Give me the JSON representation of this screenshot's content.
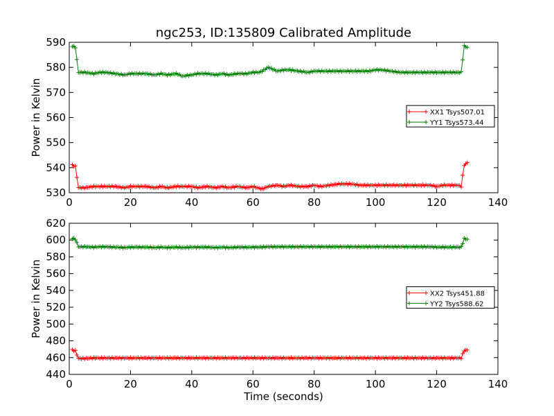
{
  "chart_data": [
    {
      "type": "line",
      "title": "ngc253, ID:135809 Calibrated Amplitude",
      "xlabel": "",
      "ylabel": "Power in Kelvin",
      "xlim": [
        0,
        140
      ],
      "ylim": [
        530,
        590
      ],
      "xticks": [
        "0",
        "20",
        "40",
        "60",
        "80",
        "100",
        "120",
        "140"
      ],
      "yticks": [
        "530",
        "540",
        "550",
        "560",
        "570",
        "580",
        "590"
      ],
      "legend_position": "center-right",
      "grid": false,
      "series": [
        {
          "name": "XX1 Tsys507.01",
          "color": "#ff0000",
          "marker": "plus",
          "x": [
            1,
            2,
            3,
            5,
            8,
            10,
            12,
            15,
            18,
            20,
            22,
            25,
            28,
            30,
            32,
            35,
            37,
            40,
            42,
            45,
            48,
            50,
            52,
            55,
            58,
            60,
            62,
            63,
            65,
            68,
            70,
            72,
            75,
            78,
            80,
            82,
            85,
            88,
            90,
            92,
            95,
            98,
            100,
            102,
            105,
            108,
            110,
            112,
            115,
            118,
            120,
            122,
            125,
            127,
            128,
            129,
            130
          ],
          "y": [
            541,
            540.5,
            532,
            532,
            532.5,
            532.5,
            532.5,
            532.5,
            532,
            532.5,
            532.5,
            532.5,
            532,
            532.5,
            532,
            532.5,
            532.5,
            532.5,
            532,
            532.5,
            532,
            532.5,
            532,
            532.5,
            532,
            532.5,
            531.8,
            531.5,
            532.5,
            533,
            532.5,
            533,
            532.5,
            532.5,
            533,
            532.5,
            533,
            533.5,
            533.5,
            533.5,
            533,
            533,
            533,
            533,
            533,
            533,
            533,
            533,
            533,
            533,
            532.5,
            533,
            533,
            533,
            532.5,
            541,
            542
          ]
        },
        {
          "name": "YY1 Tsys573.44",
          "color": "#008000",
          "marker": "plus",
          "x": [
            1,
            2,
            3,
            5,
            8,
            10,
            12,
            15,
            18,
            20,
            22,
            25,
            28,
            30,
            32,
            35,
            37,
            40,
            42,
            45,
            48,
            50,
            52,
            55,
            58,
            60,
            62,
            63,
            65,
            68,
            70,
            72,
            75,
            78,
            80,
            82,
            85,
            88,
            90,
            92,
            95,
            98,
            100,
            102,
            105,
            108,
            110,
            112,
            115,
            118,
            120,
            122,
            125,
            127,
            128,
            129,
            130
          ],
          "y": [
            588.5,
            588,
            578,
            578,
            577.5,
            578,
            578,
            577.5,
            577,
            577.5,
            577.5,
            577.5,
            577,
            577.5,
            577,
            577.5,
            576.5,
            577,
            577.5,
            577.5,
            577,
            577.5,
            577,
            577.5,
            577.5,
            578,
            578,
            578.5,
            580,
            578.5,
            579,
            579,
            578.5,
            578,
            578.5,
            578.5,
            578.5,
            578.5,
            578.5,
            578.5,
            578.5,
            578.5,
            579,
            579,
            578.5,
            578,
            578,
            578,
            578,
            578,
            578,
            578,
            578,
            578,
            578,
            588.5,
            588
          ]
        }
      ]
    },
    {
      "type": "line",
      "title": "",
      "xlabel": "Time (seconds)",
      "ylabel": "Power in Kelvin",
      "xlim": [
        0,
        140
      ],
      "ylim": [
        440,
        620
      ],
      "xticks": [
        "0",
        "20",
        "40",
        "60",
        "80",
        "100",
        "120",
        "140"
      ],
      "yticks": [
        "440",
        "460",
        "480",
        "500",
        "520",
        "540",
        "560",
        "580",
        "600",
        "620"
      ],
      "legend_position": "center-right",
      "grid": false,
      "series": [
        {
          "name": "XX2 Tsys451.88",
          "color": "#ff0000",
          "marker": "plus",
          "x": [
            1,
            2,
            3,
            5,
            8,
            10,
            12,
            15,
            18,
            20,
            22,
            25,
            28,
            30,
            32,
            35,
            37,
            40,
            42,
            45,
            48,
            50,
            52,
            55,
            58,
            60,
            62,
            65,
            68,
            70,
            72,
            75,
            78,
            80,
            82,
            85,
            88,
            90,
            92,
            95,
            98,
            100,
            102,
            105,
            108,
            110,
            112,
            115,
            118,
            120,
            122,
            125,
            127,
            128,
            129,
            130
          ],
          "y": [
            469,
            468,
            459,
            459,
            459.5,
            459.5,
            459.5,
            459.5,
            459.5,
            459.5,
            459.5,
            459.5,
            459.5,
            459.5,
            459.5,
            459.5,
            459.5,
            459.5,
            459.5,
            459.5,
            459.5,
            459.5,
            459.5,
            459.5,
            459.5,
            459.5,
            459.5,
            459.5,
            459.5,
            459.5,
            459.5,
            459.5,
            459.5,
            459.5,
            459.5,
            459.5,
            459.5,
            459.5,
            459.5,
            459.5,
            459.5,
            459.5,
            459.5,
            459.5,
            459.5,
            459.5,
            459.5,
            459.5,
            459.5,
            459.5,
            459.5,
            459.5,
            459.5,
            459.5,
            468.5,
            469
          ]
        },
        {
          "name": "YY2 Tsys588.62",
          "color": "#008000",
          "marker": "plus",
          "x": [
            1,
            2,
            3,
            5,
            8,
            10,
            12,
            15,
            18,
            20,
            22,
            25,
            28,
            30,
            32,
            35,
            37,
            40,
            42,
            45,
            48,
            50,
            52,
            55,
            58,
            60,
            62,
            65,
            68,
            70,
            72,
            75,
            78,
            80,
            82,
            85,
            88,
            90,
            92,
            95,
            98,
            100,
            102,
            105,
            108,
            110,
            112,
            115,
            118,
            120,
            122,
            125,
            127,
            128,
            129,
            130
          ],
          "y": [
            602,
            601,
            592,
            592,
            591.5,
            592,
            592,
            591.5,
            591,
            591.5,
            591.5,
            591.5,
            591,
            591.5,
            591,
            591.5,
            591,
            591.5,
            591.5,
            591.5,
            591,
            591.5,
            591,
            591.5,
            591.5,
            591.5,
            591.5,
            592,
            592,
            592,
            592,
            592,
            592,
            592,
            592,
            592,
            592,
            592,
            592,
            592,
            592,
            592,
            592,
            592,
            592,
            592,
            592,
            592,
            592,
            591.5,
            591.5,
            591.5,
            591.5,
            591.5,
            601.5,
            601
          ]
        }
      ]
    }
  ]
}
